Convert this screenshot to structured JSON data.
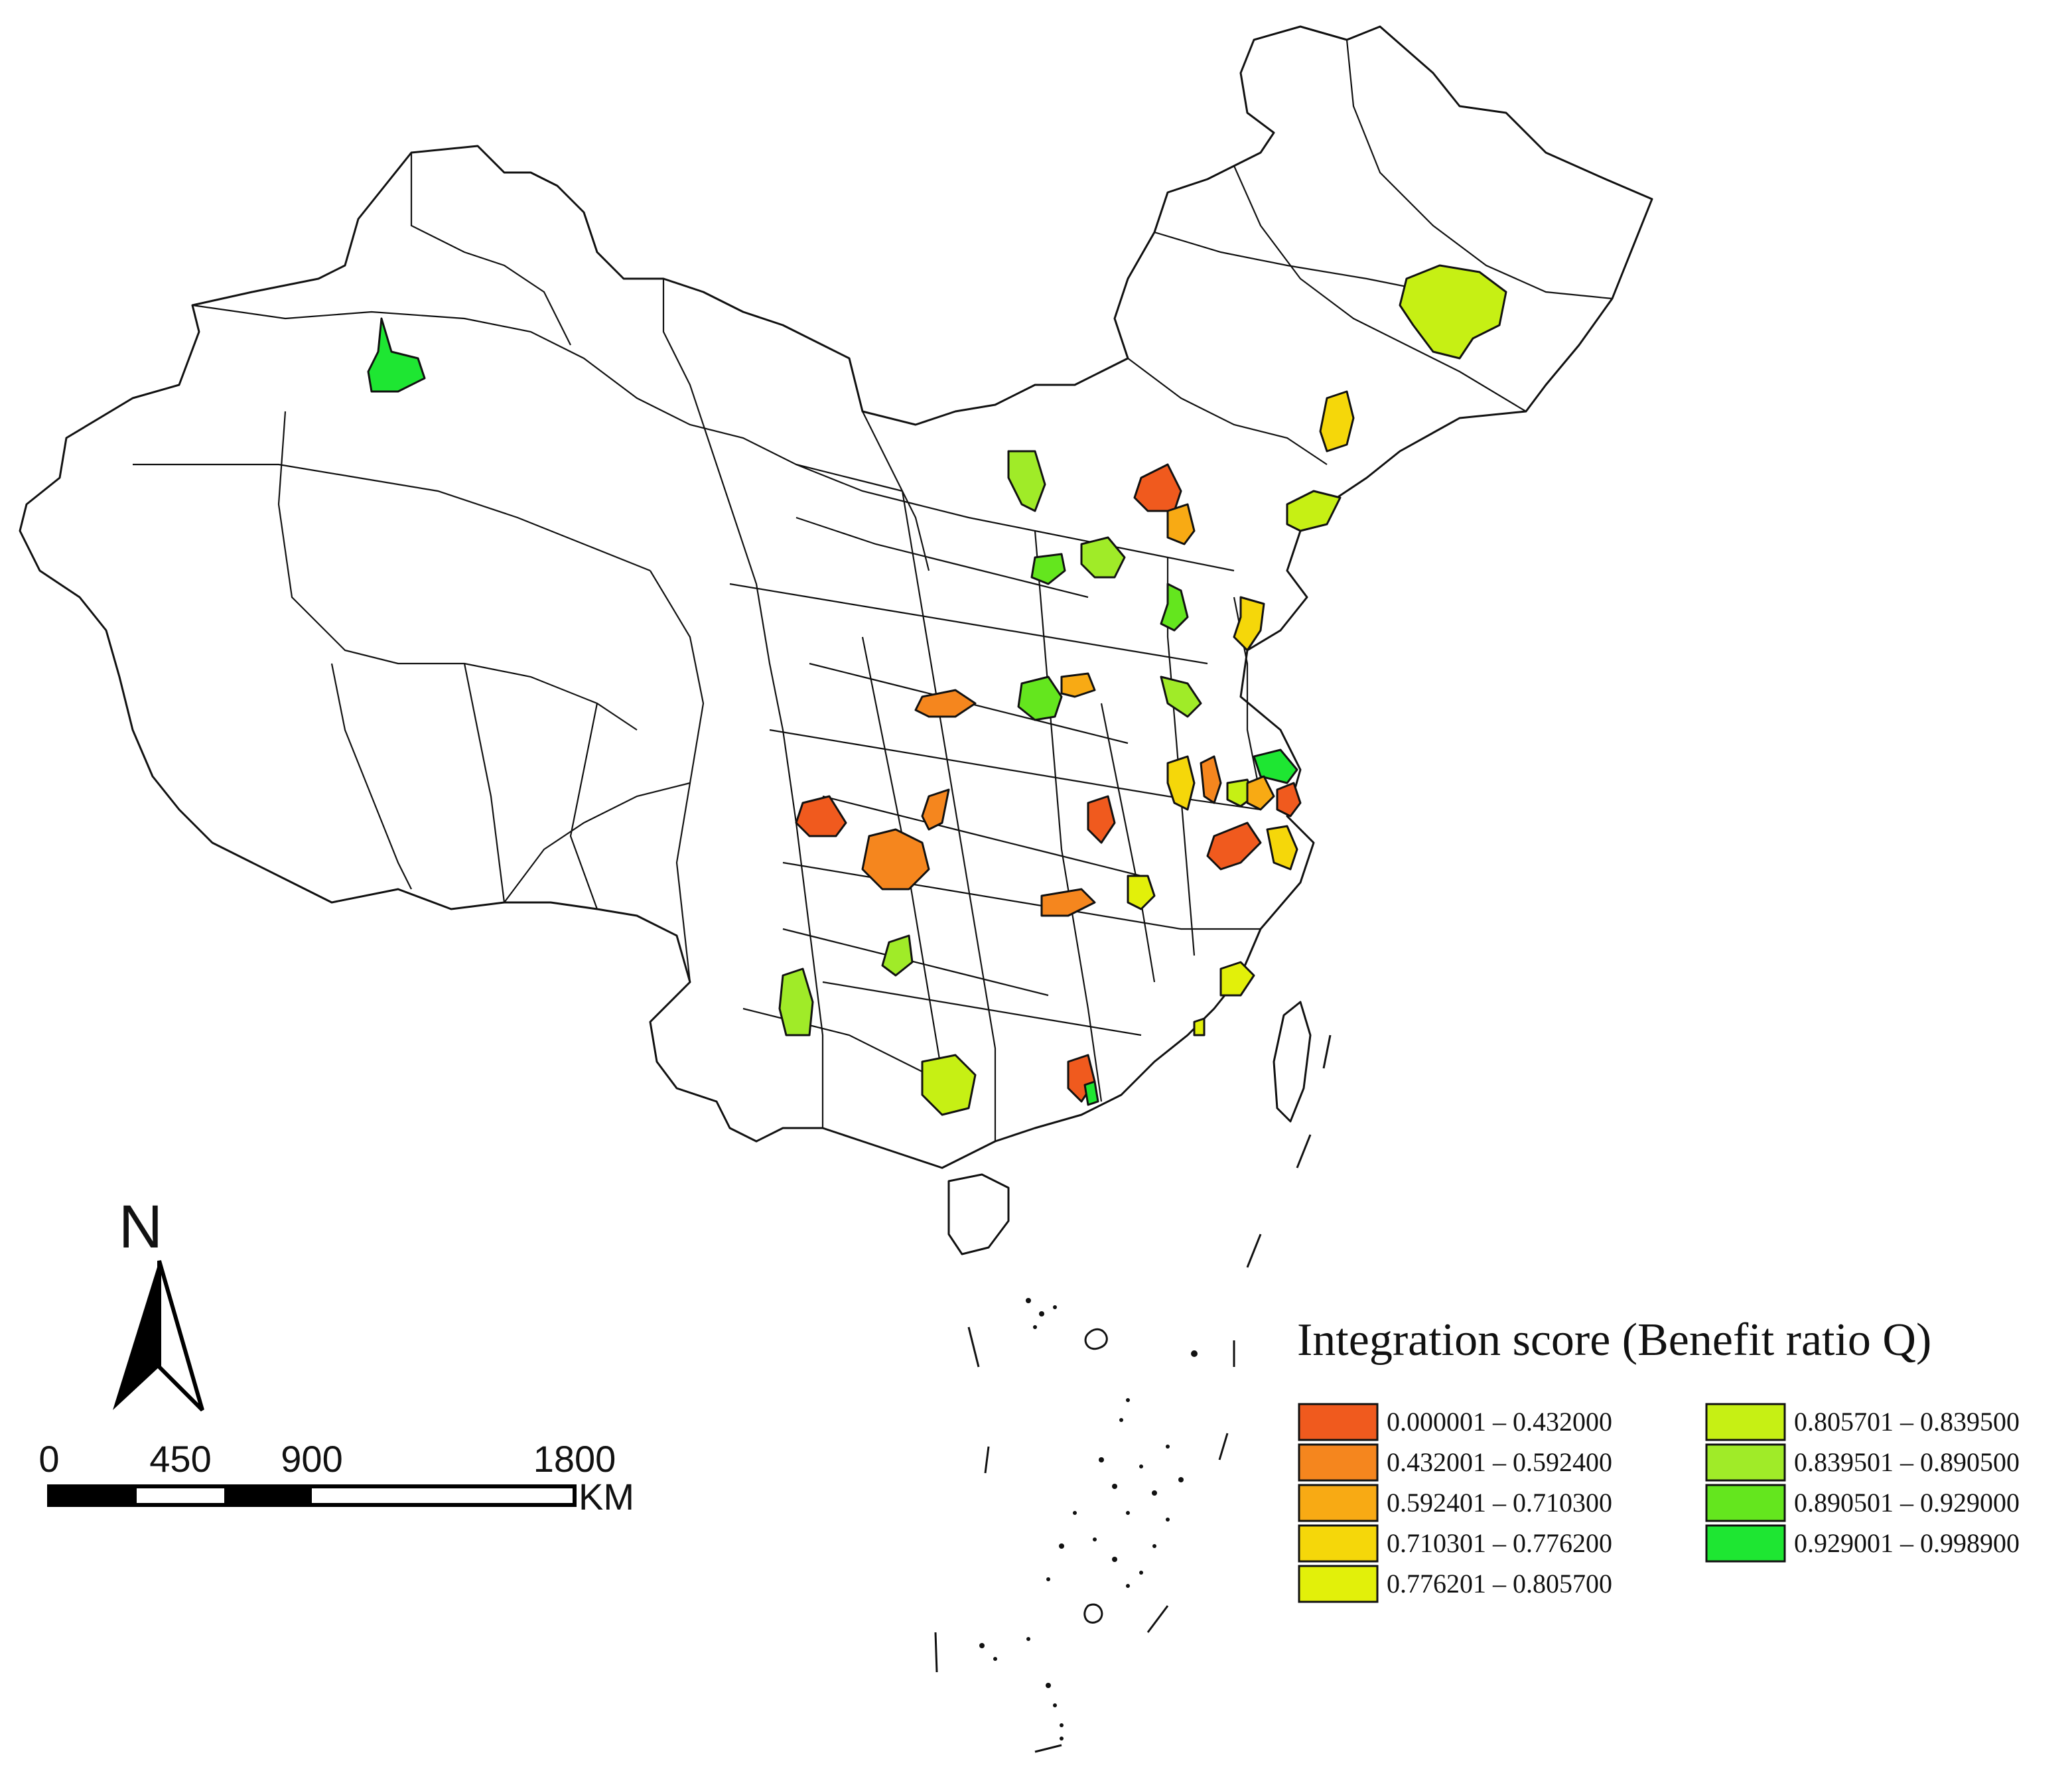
{
  "legend": {
    "title": "Integration score (Benefit ratio Q)",
    "classes": [
      {
        "label": "0.000001 – 0.432000",
        "color": "#f05a1e"
      },
      {
        "label": "0.432001 – 0.592400",
        "color": "#f5861e"
      },
      {
        "label": "0.592401 – 0.710300",
        "color": "#f8aa14"
      },
      {
        "label": "0.710301 – 0.776200",
        "color": "#f5d70a"
      },
      {
        "label": "0.776201 – 0.805700",
        "color": "#e2f00a"
      },
      {
        "label": "0.805701 – 0.839500",
        "color": "#c6f014"
      },
      {
        "label": "0.839501 – 0.890500",
        "color": "#a0eb28"
      },
      {
        "label": "0.890501 – 0.929000",
        "color": "#64e61e"
      },
      {
        "label": "0.929001 – 0.998900",
        "color": "#1ee632"
      }
    ]
  },
  "north_arrow": {
    "label": "N",
    "icon": "north-arrow-icon"
  },
  "scale_bar": {
    "ticks": [
      "0",
      "450",
      "900",
      "1800"
    ],
    "unit": "KM"
  },
  "highlighted_cities": [
    {
      "name": "city-northwest",
      "class": 8
    },
    {
      "name": "city-northeast-large",
      "class": 5
    },
    {
      "name": "city-liaoning-north",
      "class": 3
    },
    {
      "name": "city-liaoning-coast",
      "class": 5
    },
    {
      "name": "city-beijing",
      "class": 0
    },
    {
      "name": "city-tianjin",
      "class": 2
    },
    {
      "name": "city-hohhot",
      "class": 6
    },
    {
      "name": "city-taiyuan",
      "class": 7
    },
    {
      "name": "city-shijiazhuang",
      "class": 6
    },
    {
      "name": "city-jinan",
      "class": 7
    },
    {
      "name": "city-qingdao",
      "class": 3
    },
    {
      "name": "city-xuzhou",
      "class": 6
    },
    {
      "name": "city-zhengzhou",
      "class": 7
    },
    {
      "name": "city-kaifeng",
      "class": 2
    },
    {
      "name": "city-xian",
      "class": 1
    },
    {
      "name": "city-nanjing",
      "class": 3
    },
    {
      "name": "city-yangzhou",
      "class": 8
    },
    {
      "name": "city-hefei",
      "class": 1
    },
    {
      "name": "city-suzhou",
      "class": 5
    },
    {
      "name": "city-wuxi",
      "class": 2
    },
    {
      "name": "city-shanghai",
      "class": 0
    },
    {
      "name": "city-hangzhou",
      "class": 3
    },
    {
      "name": "city-nanchang",
      "class": 0
    },
    {
      "name": "city-wuhan",
      "class": 0
    },
    {
      "name": "city-chongqing",
      "class": 1
    },
    {
      "name": "city-chengdu",
      "class": 0
    },
    {
      "name": "city-chengdu-south",
      "class": 1
    },
    {
      "name": "city-changsha",
      "class": 1
    },
    {
      "name": "city-hengyang",
      "class": 4
    },
    {
      "name": "city-guiyang",
      "class": 6
    },
    {
      "name": "city-kunming",
      "class": 6
    },
    {
      "name": "city-nanning",
      "class": 5
    },
    {
      "name": "city-fuzhou",
      "class": 4
    },
    {
      "name": "city-xiamen",
      "class": 4
    },
    {
      "name": "city-guangzhou",
      "class": 0
    },
    {
      "name": "city-shenzhen",
      "class": 8
    }
  ]
}
